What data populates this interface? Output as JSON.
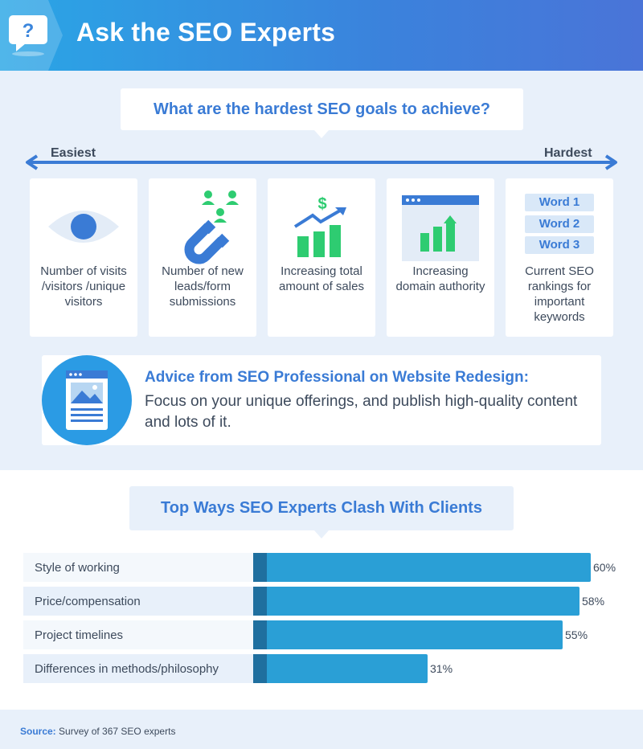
{
  "header": {
    "title": "Ask the SEO Experts",
    "icon": "question-bubble-icon",
    "colors": {
      "start": "#2aa6e6",
      "end": "#4a74d8"
    }
  },
  "goals": {
    "question": "What are the hardest SEO goals to achieve?",
    "easiest_label": "Easiest",
    "hardest_label": "Hardest",
    "items": [
      {
        "icon": "eye-icon",
        "label": "Number of visits /visitors /unique visitors"
      },
      {
        "icon": "magnet-leads-icon",
        "label": "Number of new leads/form submissions"
      },
      {
        "icon": "sales-growth-icon",
        "label": "Increasing total amount of sales"
      },
      {
        "icon": "domain-authority-icon",
        "label": "Increasing domain authority"
      },
      {
        "icon": "keywords-icon",
        "label": "Current SEO rankings for important keywords",
        "words": [
          "Word 1",
          "Word 2",
          "Word 3"
        ]
      }
    ]
  },
  "advice": {
    "icon": "webpage-icon",
    "title": "Advice from SEO Professional on Website Redesign:",
    "body": "Focus on your unique offerings, and publish high-quality content and lots of it."
  },
  "chart_data": {
    "type": "bar",
    "orientation": "horizontal",
    "title": "Top Ways SEO Experts Clash With Clients",
    "categories": [
      "Style of working",
      "Price/compensation",
      "Project timelines",
      "Differences in methods/philosophy"
    ],
    "values": [
      60,
      58,
      55,
      31
    ],
    "value_labels": [
      "60%",
      "58%",
      "55%",
      "31%"
    ],
    "unit": "%",
    "xlim": [
      0,
      60
    ],
    "grid": false,
    "colors": {
      "bar": "#2a9fd6",
      "bar_cap": "#1f6f9f",
      "row_a": "#f4f8fc",
      "row_b": "#e8f0fa"
    }
  },
  "footer": {
    "source_label": "Source:",
    "source_text": "Survey of 367 SEO experts"
  }
}
